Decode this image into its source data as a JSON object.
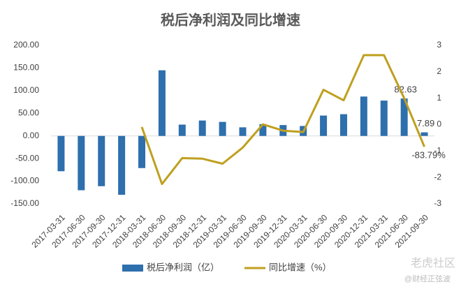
{
  "chart_data": {
    "type": "bar_line",
    "title": "税后净利润及同比增速",
    "categories": [
      "2017-03-31",
      "2017-06-30",
      "2017-09-30",
      "2017-12-31",
      "2018-03-31",
      "2018-06-30",
      "2018-09-30",
      "2018-12-31",
      "2019-03-31",
      "2019-06-30",
      "2019-09-30",
      "2019-12-31",
      "2020-03-31",
      "2020-06-30",
      "2020-09-30",
      "2020-12-31",
      "2021-03-31",
      "2021-06-30",
      "2021-09-30"
    ],
    "series": [
      {
        "name": "税后净利润（亿）",
        "color": "#2e6fad",
        "axis": "y",
        "values": [
          -78,
          -120,
          -111,
          -130,
          -71,
          145,
          25,
          34,
          31,
          19,
          26,
          24,
          22,
          45,
          48,
          87,
          78,
          82.63,
          7.89
        ]
      },
      {
        "name": "同比增速（%）",
        "color": "#bf9f1f",
        "axis": "y2",
        "values": [
          null,
          null,
          null,
          null,
          -0.09,
          -2.25,
          -1.27,
          -1.29,
          -1.48,
          -0.87,
          0.01,
          -0.23,
          -0.28,
          1.32,
          0.92,
          2.63,
          2.63,
          1.0,
          -0.8379
        ],
        "value_labels": [
          null,
          null,
          null,
          null,
          null,
          null,
          null,
          null,
          null,
          null,
          null,
          null,
          null,
          null,
          null,
          null,
          null,
          null,
          "-83.79%"
        ]
      }
    ],
    "bar_labels": [
      17,
      18
    ],
    "ylim": [
      -150,
      200
    ],
    "yticks": [
      {
        "value": 200,
        "label": "200.00"
      },
      {
        "value": 150,
        "label": "150.00"
      },
      {
        "value": 100,
        "label": "100.00"
      },
      {
        "value": 50,
        "label": "50.00"
      },
      {
        "value": 0,
        "label": "0.00"
      },
      {
        "value": -50,
        "label": "-50.00"
      },
      {
        "value": -100,
        "label": "-100.00"
      },
      {
        "value": -150,
        "label": "-150.00"
      }
    ],
    "y2lim": [
      -3,
      3
    ],
    "y2ticks": [
      3,
      2,
      1,
      0,
      -1,
      -2,
      -3
    ],
    "grid": false,
    "legend": "bottom",
    "watermark": "老虎社区",
    "watermark_sub": "@财经正弦波"
  }
}
